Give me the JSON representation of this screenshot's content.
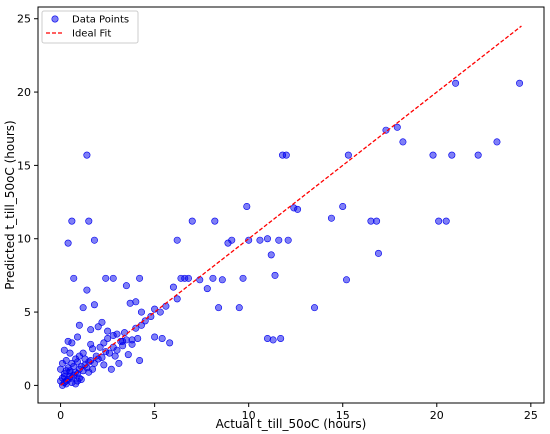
{
  "chart_data": {
    "type": "scatter",
    "xlabel": "Actual t_till_50oC (hours)",
    "ylabel": "Predicted t_till_50oC (hours)",
    "xlim": [
      -1.2,
      25.7
    ],
    "ylim": [
      -1.2,
      25.8
    ],
    "xticks": [
      0,
      5,
      10,
      15,
      20,
      25
    ],
    "yticks": [
      0,
      5,
      10,
      15,
      20,
      25
    ],
    "grid": false,
    "legend_position": "top-left",
    "series": [
      {
        "name": "Data Points",
        "kind": "scatter",
        "color": "#0000ee",
        "fill_opacity": 0.5,
        "points": [
          [
            0.2,
            0.2
          ],
          [
            0.3,
            0.3
          ],
          [
            0.1,
            0.5
          ],
          [
            0.4,
            0.4
          ],
          [
            0.5,
            0.6
          ],
          [
            0.2,
            0.8
          ],
          [
            0.6,
            0.5
          ],
          [
            0.3,
            1.0
          ],
          [
            0.7,
            0.7
          ],
          [
            0.8,
            0.9
          ],
          [
            0.9,
            0.8
          ],
          [
            1.0,
            1.1
          ],
          [
            0.4,
            1.2
          ],
          [
            1.1,
            1.3
          ],
          [
            1.2,
            1.0
          ],
          [
            0.5,
            0.9
          ],
          [
            0.6,
            1.5
          ],
          [
            1.3,
            1.4
          ],
          [
            1.4,
            1.2
          ],
          [
            0.8,
            1.8
          ],
          [
            1.5,
            1.6
          ],
          [
            1.6,
            1.7
          ],
          [
            1.8,
            1.5
          ],
          [
            1.0,
            2.0
          ],
          [
            1.2,
            2.2
          ],
          [
            1.9,
            2.0
          ],
          [
            2.0,
            1.8
          ],
          [
            0.3,
            0.1
          ],
          [
            0.1,
            0.0
          ],
          [
            0.0,
            0.3
          ],
          [
            0.6,
            0.2
          ],
          [
            1.0,
            0.5
          ],
          [
            1.5,
            0.9
          ],
          [
            0.9,
            0.3
          ],
          [
            1.7,
            1.1
          ],
          [
            2.2,
            1.9
          ],
          [
            2.4,
            2.3
          ],
          [
            2.6,
            2.2
          ],
          [
            2.8,
            2.6
          ],
          [
            3.0,
            2.4
          ],
          [
            3.2,
            3.0
          ],
          [
            3.5,
            3.1
          ],
          [
            3.8,
            2.8
          ],
          [
            2.5,
            3.2
          ],
          [
            3.0,
            3.5
          ],
          [
            0.6,
            2.9
          ],
          [
            0.9,
            3.3
          ],
          [
            0.5,
            2.2
          ],
          [
            0.4,
            3.0
          ],
          [
            1.2,
            5.3
          ],
          [
            1.0,
            4.1
          ],
          [
            1.4,
            6.5
          ],
          [
            1.8,
            5.5
          ],
          [
            2.4,
            7.3
          ],
          [
            2.8,
            7.3
          ],
          [
            3.5,
            6.8
          ],
          [
            3.7,
            5.6
          ],
          [
            4.0,
            5.7
          ],
          [
            4.2,
            7.3
          ],
          [
            4.3,
            4.1
          ],
          [
            4.8,
            4.7
          ],
          [
            5.0,
            3.3
          ],
          [
            5.4,
            3.2
          ],
          [
            5.8,
            2.9
          ],
          [
            6.0,
            6.7
          ],
          [
            6.2,
            9.9
          ],
          [
            6.4,
            7.3
          ],
          [
            6.6,
            7.3
          ],
          [
            6.8,
            7.3
          ],
          [
            7.0,
            11.2
          ],
          [
            7.4,
            7.2
          ],
          [
            7.8,
            6.6
          ],
          [
            8.1,
            7.3
          ],
          [
            8.2,
            11.2
          ],
          [
            8.4,
            5.3
          ],
          [
            8.6,
            7.2
          ],
          [
            8.9,
            9.7
          ],
          [
            9.1,
            9.9
          ],
          [
            9.5,
            5.3
          ],
          [
            9.7,
            7.3
          ],
          [
            9.9,
            12.2
          ],
          [
            10.0,
            9.9
          ],
          [
            10.6,
            9.9
          ],
          [
            11.0,
            10.0
          ],
          [
            11.2,
            8.9
          ],
          [
            11.4,
            7.5
          ],
          [
            11.6,
            9.9
          ],
          [
            11.8,
            15.7
          ],
          [
            12.0,
            15.7
          ],
          [
            12.1,
            9.9
          ],
          [
            12.4,
            12.1
          ],
          [
            12.6,
            12.0
          ],
          [
            11.3,
            3.1
          ],
          [
            11.7,
            3.2
          ],
          [
            11.0,
            3.2
          ],
          [
            13.5,
            5.3
          ],
          [
            14.4,
            11.4
          ],
          [
            15.0,
            12.2
          ],
          [
            15.2,
            7.2
          ],
          [
            15.3,
            15.7
          ],
          [
            16.5,
            11.2
          ],
          [
            16.8,
            11.2
          ],
          [
            16.9,
            9.0
          ],
          [
            17.3,
            17.4
          ],
          [
            17.9,
            17.6
          ],
          [
            18.2,
            16.6
          ],
          [
            19.8,
            15.7
          ],
          [
            20.1,
            11.2
          ],
          [
            20.5,
            11.2
          ],
          [
            20.8,
            15.7
          ],
          [
            21.0,
            20.6
          ],
          [
            22.2,
            15.7
          ],
          [
            23.2,
            16.6
          ],
          [
            24.4,
            20.6
          ],
          [
            1.4,
            15.7
          ],
          [
            1.5,
            11.2
          ],
          [
            0.6,
            11.2
          ],
          [
            1.8,
            9.9
          ],
          [
            0.4,
            9.7
          ],
          [
            0.7,
            7.3
          ],
          [
            2.0,
            4.0
          ],
          [
            2.2,
            4.3
          ],
          [
            1.6,
            3.8
          ],
          [
            2.5,
            3.7
          ],
          [
            3.3,
            3.0
          ],
          [
            4.1,
            3.2
          ],
          [
            3.8,
            3.1
          ],
          [
            3.6,
            2.1
          ],
          [
            4.2,
            1.7
          ],
          [
            3.1,
            1.5
          ],
          [
            2.7,
            1.1
          ],
          [
            0.2,
            2.4
          ],
          [
            0.1,
            1.5
          ],
          [
            0.3,
            1.7
          ],
          [
            0.0,
            1.1
          ],
          [
            0.8,
            0.1
          ],
          [
            1.1,
            0.4
          ],
          [
            2.3,
            1.4
          ],
          [
            2.9,
            2.0
          ],
          [
            3.3,
            2.7
          ],
          [
            5.0,
            5.2
          ],
          [
            5.3,
            5.0
          ],
          [
            4.5,
            4.4
          ],
          [
            4.0,
            3.9
          ],
          [
            3.4,
            3.6
          ],
          [
            2.1,
            2.6
          ],
          [
            1.7,
            2.5
          ],
          [
            1.3,
            1.8
          ],
          [
            0.7,
            1.3
          ],
          [
            0.5,
            1.0
          ],
          [
            0.2,
            0.6
          ],
          [
            0.9,
            1.6
          ],
          [
            1.6,
            2.8
          ],
          [
            2.3,
            2.9
          ],
          [
            2.8,
            3.4
          ],
          [
            4.3,
            5.0
          ],
          [
            5.6,
            5.4
          ],
          [
            6.2,
            5.9
          ]
        ]
      },
      {
        "name": "Ideal Fit",
        "kind": "line",
        "color": "#ff0000",
        "dash": "dashed",
        "points": [
          [
            0,
            0
          ],
          [
            24.5,
            24.5
          ]
        ]
      }
    ]
  }
}
